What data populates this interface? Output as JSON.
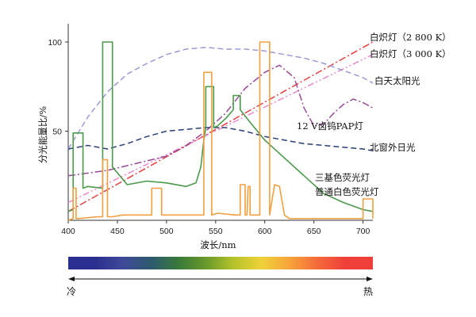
{
  "chart_data": {
    "type": "line",
    "xlabel": "波长/nm",
    "ylabel": "分光能量比/%",
    "xlim": [
      400,
      710
    ],
    "ylim": [
      0,
      100
    ],
    "x_ticks": [
      400,
      450,
      500,
      550,
      600,
      650,
      700
    ],
    "y_ticks": [
      50,
      100
    ],
    "grid": false,
    "series": [
      {
        "name": "白炽灯（2 800 K）",
        "style": "dash-dot",
        "color": "#e34040",
        "x": [
          400,
          710
        ],
        "y": [
          5,
          100
        ]
      },
      {
        "name": "白炽灯（3 000 K）",
        "style": "dash-dot-dot",
        "color": "#e88ad0",
        "x": [
          400,
          710
        ],
        "y": [
          10,
          93
        ]
      },
      {
        "name": "白天太阳光",
        "style": "dashed",
        "color": "#9a9ad8",
        "x": [
          400,
          420,
          440,
          460,
          480,
          500,
          520,
          540,
          560,
          580,
          600,
          620,
          640,
          660,
          680,
          700,
          710
        ],
        "y": [
          40,
          58,
          72,
          82,
          88,
          93,
          96,
          97,
          96,
          96,
          95,
          93,
          91,
          88,
          84,
          80,
          77
        ]
      },
      {
        "name": "12 V卤钨PAP灯",
        "style": "dash-dot",
        "color": "#9a4a9a",
        "x": [
          400,
          440,
          470,
          500,
          520,
          540,
          560,
          580,
          600,
          615,
          630,
          640,
          650,
          660,
          670,
          680,
          690,
          700,
          710
        ],
        "y": [
          25,
          28,
          32,
          36,
          42,
          50,
          60,
          74,
          83,
          87,
          80,
          63,
          53,
          54,
          60,
          65,
          68,
          66,
          63
        ]
      },
      {
        "name": "北窗外日光",
        "style": "dashed",
        "color": "#2a3f7a",
        "x": [
          400,
          420,
          440,
          460,
          480,
          500,
          520,
          540,
          560,
          580,
          600,
          620,
          640,
          660,
          680,
          700,
          710
        ],
        "y": [
          40,
          42,
          40,
          43,
          47,
          50,
          51,
          52,
          52,
          50,
          47,
          45,
          43,
          42,
          41,
          40,
          39
        ]
      },
      {
        "name": "三基色荧光灯",
        "style": "solid",
        "color": "#4a9a4a",
        "x": [
          400,
          405,
          405,
          415,
          415,
          420,
          435,
          435,
          445,
          445,
          460,
          480,
          500,
          520,
          530,
          535,
          538,
          540,
          540,
          548,
          548,
          552,
          560,
          568,
          568,
          575,
          575,
          585,
          600,
          620,
          640,
          660,
          680,
          700,
          710
        ],
        "y": [
          5,
          6,
          49,
          49,
          18,
          19,
          18,
          100,
          100,
          30,
          20,
          22,
          21,
          19,
          21,
          30,
          45,
          52,
          75,
          75,
          52,
          53,
          57,
          62,
          70,
          70,
          62,
          55,
          45,
          35,
          25,
          15,
          10,
          6,
          5
        ],
        "peaks_note": "spikes at 405-415, 435-445, 540-548, 568-575"
      },
      {
        "name": "普通白色荧光灯",
        "style": "solid",
        "color": "#f0a040",
        "x": [
          400,
          405,
          405,
          408,
          408,
          410,
          430,
          435,
          435,
          440,
          440,
          445,
          455,
          485,
          485,
          495,
          495,
          505,
          530,
          538,
          538,
          546,
          546,
          552,
          570,
          575,
          575,
          580,
          580,
          582,
          583,
          585,
          585,
          595,
          595,
          605,
          605,
          610,
          615,
          620,
          625,
          640,
          660,
          680,
          700,
          700,
          710,
          710
        ],
        "y": [
          0,
          1,
          18,
          18,
          1,
          1,
          2,
          2,
          34,
          34,
          2,
          2,
          3,
          3,
          18,
          18,
          3,
          3,
          3,
          3,
          83,
          83,
          3,
          4,
          3,
          3,
          20,
          20,
          3,
          3,
          19,
          19,
          3,
          3,
          100,
          100,
          3,
          20,
          19,
          3,
          1,
          1,
          1,
          1,
          1,
          12,
          12,
          1
        ]
      }
    ]
  },
  "color_bar": {
    "left_label": "冷",
    "right_label": "热",
    "colors": [
      "#2b2f8f",
      "#2b2f8f",
      "#3f4a98",
      "#2d5a6e",
      "#3a7a3a",
      "#6a9a2a",
      "#b7c42a",
      "#f0d23a",
      "#f7a43a",
      "#f46a3a",
      "#ef3f3a",
      "#ef3f3a"
    ]
  }
}
